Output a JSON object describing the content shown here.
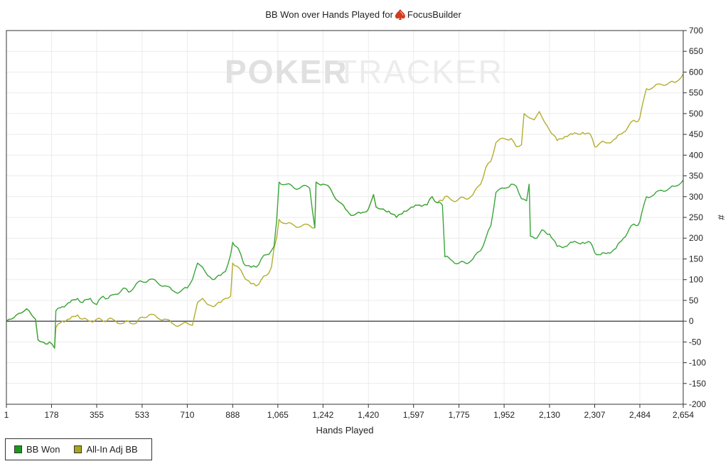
{
  "chart_data": {
    "type": "line",
    "title": "BB Won over Hands Played for",
    "player": "FocusBuilder",
    "player_icon": "spade-icon",
    "watermark": {
      "left": "POKER",
      "right": "TRACKER"
    },
    "xlabel": "Hands Played",
    "ylabel": "#",
    "xlim": [
      1,
      2654
    ],
    "ylim": [
      -200,
      700
    ],
    "xticks": [
      "1",
      "178",
      "355",
      "533",
      "710",
      "888",
      "1,065",
      "1,242",
      "1,420",
      "1,597",
      "1,775",
      "1,952",
      "2,130",
      "2,307",
      "2,484",
      "2,654"
    ],
    "xtick_values": [
      1,
      178,
      355,
      533,
      710,
      888,
      1065,
      1242,
      1420,
      1597,
      1775,
      1952,
      2130,
      2307,
      2484,
      2654
    ],
    "yticks": [
      "700",
      "650",
      "600",
      "550",
      "500",
      "450",
      "400",
      "350",
      "300",
      "250",
      "200",
      "150",
      "100",
      "50",
      "0",
      "-50",
      "-100",
      "-150",
      "-200"
    ],
    "ytick_values": [
      700,
      650,
      600,
      550,
      500,
      450,
      400,
      350,
      300,
      250,
      200,
      150,
      100,
      50,
      0,
      -50,
      -100,
      -150,
      -200
    ],
    "grid": true,
    "legend_position": "bottom-left",
    "series": [
      {
        "name": "BB Won",
        "color": "#3aa53a",
        "legend_color": "#1a9a1a",
        "points": [
          [
            1,
            0
          ],
          [
            20,
            5
          ],
          [
            40,
            15
          ],
          [
            60,
            20
          ],
          [
            80,
            30
          ],
          [
            90,
            25
          ],
          [
            100,
            15
          ],
          [
            115,
            5
          ],
          [
            125,
            -45
          ],
          [
            140,
            -50
          ],
          [
            155,
            -55
          ],
          [
            170,
            -50
          ],
          [
            190,
            -65
          ],
          [
            195,
            25
          ],
          [
            220,
            35
          ],
          [
            250,
            45
          ],
          [
            280,
            55
          ],
          [
            300,
            45
          ],
          [
            330,
            55
          ],
          [
            355,
            40
          ],
          [
            380,
            60
          ],
          [
            400,
            55
          ],
          [
            430,
            65
          ],
          [
            460,
            80
          ],
          [
            480,
            70
          ],
          [
            510,
            90
          ],
          [
            533,
            95
          ],
          [
            560,
            100
          ],
          [
            590,
            95
          ],
          [
            620,
            85
          ],
          [
            650,
            75
          ],
          [
            680,
            70
          ],
          [
            710,
            80
          ],
          [
            730,
            100
          ],
          [
            750,
            140
          ],
          [
            770,
            130
          ],
          [
            790,
            110
          ],
          [
            810,
            100
          ],
          [
            840,
            110
          ],
          [
            860,
            120
          ],
          [
            880,
            160
          ],
          [
            888,
            190
          ],
          [
            910,
            175
          ],
          [
            930,
            140
          ],
          [
            960,
            130
          ],
          [
            980,
            130
          ],
          [
            1000,
            150
          ],
          [
            1020,
            160
          ],
          [
            1040,
            170
          ],
          [
            1050,
            180
          ],
          [
            1060,
            240
          ],
          [
            1070,
            335
          ],
          [
            1100,
            330
          ],
          [
            1130,
            320
          ],
          [
            1160,
            325
          ],
          [
            1190,
            320
          ],
          [
            1210,
            225
          ],
          [
            1215,
            335
          ],
          [
            1242,
            330
          ],
          [
            1270,
            320
          ],
          [
            1300,
            290
          ],
          [
            1330,
            270
          ],
          [
            1360,
            255
          ],
          [
            1390,
            260
          ],
          [
            1420,
            270
          ],
          [
            1440,
            305
          ],
          [
            1450,
            275
          ],
          [
            1470,
            270
          ],
          [
            1500,
            265
          ],
          [
            1530,
            250
          ],
          [
            1560,
            265
          ],
          [
            1597,
            275
          ],
          [
            1620,
            280
          ],
          [
            1650,
            280
          ],
          [
            1670,
            300
          ],
          [
            1690,
            285
          ],
          [
            1710,
            280
          ],
          [
            1720,
            155
          ],
          [
            1750,
            145
          ],
          [
            1775,
            140
          ],
          [
            1800,
            140
          ],
          [
            1830,
            150
          ],
          [
            1860,
            170
          ],
          [
            1880,
            200
          ],
          [
            1900,
            230
          ],
          [
            1920,
            310
          ],
          [
            1952,
            320
          ],
          [
            1980,
            330
          ],
          [
            2000,
            325
          ],
          [
            2020,
            295
          ],
          [
            2040,
            290
          ],
          [
            2050,
            330
          ],
          [
            2055,
            205
          ],
          [
            2080,
            200
          ],
          [
            2100,
            220
          ],
          [
            2130,
            210
          ],
          [
            2160,
            180
          ],
          [
            2190,
            180
          ],
          [
            2220,
            190
          ],
          [
            2260,
            190
          ],
          [
            2290,
            190
          ],
          [
            2307,
            165
          ],
          [
            2330,
            160
          ],
          [
            2360,
            165
          ],
          [
            2390,
            175
          ],
          [
            2420,
            200
          ],
          [
            2450,
            230
          ],
          [
            2470,
            230
          ],
          [
            2484,
            240
          ],
          [
            2510,
            300
          ],
          [
            2540,
            305
          ],
          [
            2570,
            315
          ],
          [
            2600,
            320
          ],
          [
            2620,
            325
          ],
          [
            2654,
            340
          ]
        ]
      },
      {
        "name": "All-In Adj BB",
        "color": "#b3ad2d",
        "legend_color": "#a6a621",
        "points": [
          [
            1,
            0
          ],
          [
            20,
            5
          ],
          [
            40,
            15
          ],
          [
            60,
            20
          ],
          [
            80,
            30
          ],
          [
            90,
            25
          ],
          [
            100,
            15
          ],
          [
            115,
            5
          ],
          [
            125,
            -45
          ],
          [
            140,
            -50
          ],
          [
            155,
            -55
          ],
          [
            170,
            -50
          ],
          [
            190,
            -65
          ],
          [
            195,
            -15
          ],
          [
            220,
            0
          ],
          [
            250,
            5
          ],
          [
            280,
            15
          ],
          [
            300,
            5
          ],
          [
            330,
            0
          ],
          [
            355,
            5
          ],
          [
            380,
            0
          ],
          [
            400,
            5
          ],
          [
            430,
            0
          ],
          [
            460,
            -5
          ],
          [
            480,
            0
          ],
          [
            510,
            -5
          ],
          [
            533,
            10
          ],
          [
            560,
            15
          ],
          [
            590,
            10
          ],
          [
            620,
            5
          ],
          [
            650,
            -5
          ],
          [
            680,
            -10
          ],
          [
            710,
            -5
          ],
          [
            730,
            -10
          ],
          [
            750,
            45
          ],
          [
            770,
            55
          ],
          [
            790,
            40
          ],
          [
            810,
            35
          ],
          [
            840,
            45
          ],
          [
            860,
            55
          ],
          [
            880,
            60
          ],
          [
            888,
            140
          ],
          [
            910,
            130
          ],
          [
            930,
            110
          ],
          [
            960,
            90
          ],
          [
            980,
            85
          ],
          [
            1000,
            100
          ],
          [
            1020,
            110
          ],
          [
            1040,
            130
          ],
          [
            1050,
            175
          ],
          [
            1060,
            200
          ],
          [
            1070,
            245
          ],
          [
            1100,
            235
          ],
          [
            1130,
            230
          ],
          [
            1160,
            230
          ],
          [
            1190,
            230
          ],
          [
            1210,
            225
          ],
          [
            1215,
            335
          ],
          [
            1242,
            330
          ],
          [
            1270,
            320
          ],
          [
            1300,
            290
          ],
          [
            1330,
            270
          ],
          [
            1360,
            255
          ],
          [
            1390,
            260
          ],
          [
            1420,
            270
          ],
          [
            1440,
            305
          ],
          [
            1450,
            275
          ],
          [
            1470,
            270
          ],
          [
            1500,
            265
          ],
          [
            1530,
            250
          ],
          [
            1560,
            265
          ],
          [
            1597,
            275
          ],
          [
            1620,
            280
          ],
          [
            1650,
            280
          ],
          [
            1670,
            300
          ],
          [
            1690,
            285
          ],
          [
            1710,
            290
          ],
          [
            1720,
            300
          ],
          [
            1750,
            290
          ],
          [
            1775,
            295
          ],
          [
            1800,
            295
          ],
          [
            1830,
            305
          ],
          [
            1860,
            330
          ],
          [
            1880,
            370
          ],
          [
            1900,
            385
          ],
          [
            1920,
            430
          ],
          [
            1952,
            440
          ],
          [
            1980,
            440
          ],
          [
            2000,
            420
          ],
          [
            2020,
            425
          ],
          [
            2030,
            500
          ],
          [
            2050,
            490
          ],
          [
            2070,
            485
          ],
          [
            2090,
            505
          ],
          [
            2110,
            480
          ],
          [
            2130,
            460
          ],
          [
            2160,
            435
          ],
          [
            2190,
            445
          ],
          [
            2220,
            450
          ],
          [
            2260,
            455
          ],
          [
            2290,
            450
          ],
          [
            2307,
            420
          ],
          [
            2330,
            430
          ],
          [
            2360,
            430
          ],
          [
            2390,
            440
          ],
          [
            2420,
            455
          ],
          [
            2450,
            480
          ],
          [
            2470,
            480
          ],
          [
            2484,
            490
          ],
          [
            2510,
            560
          ],
          [
            2540,
            565
          ],
          [
            2570,
            570
          ],
          [
            2600,
            575
          ],
          [
            2620,
            575
          ],
          [
            2654,
            595
          ]
        ]
      }
    ]
  }
}
